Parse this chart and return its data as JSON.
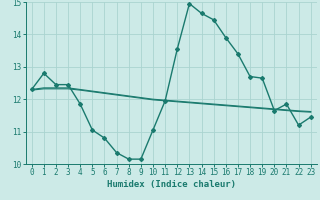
{
  "xlabel": "Humidex (Indice chaleur)",
  "background_color": "#cceae7",
  "grid_color": "#aad4d0",
  "line_color": "#1a7a6e",
  "xlim": [
    -0.5,
    23.5
  ],
  "ylim": [
    10,
    15
  ],
  "yticks": [
    10,
    11,
    12,
    13,
    14,
    15
  ],
  "xticks": [
    0,
    1,
    2,
    3,
    4,
    5,
    6,
    7,
    8,
    9,
    10,
    11,
    12,
    13,
    14,
    15,
    16,
    17,
    18,
    19,
    20,
    21,
    22,
    23
  ],
  "series1_x": [
    0,
    1,
    2,
    3,
    4,
    5,
    6,
    7,
    8,
    9,
    10,
    11,
    12,
    13,
    14,
    15,
    16,
    17,
    18,
    19,
    20,
    21,
    22,
    23
  ],
  "series1_y": [
    12.3,
    12.8,
    12.45,
    12.45,
    11.85,
    11.05,
    10.8,
    10.35,
    10.15,
    10.15,
    11.05,
    11.95,
    13.55,
    14.95,
    14.65,
    14.45,
    13.9,
    13.4,
    12.7,
    12.65,
    11.65,
    11.85,
    11.2,
    11.45
  ],
  "series2_x": [
    0,
    1,
    2,
    3,
    4,
    5,
    6,
    7,
    8,
    9,
    10,
    11,
    12,
    13,
    14,
    15,
    16,
    17,
    18,
    19,
    20,
    21,
    22,
    23
  ],
  "series2_y": [
    12.3,
    12.35,
    12.35,
    12.35,
    12.3,
    12.25,
    12.2,
    12.15,
    12.1,
    12.05,
    12.0,
    11.97,
    11.94,
    11.91,
    11.88,
    11.85,
    11.82,
    11.79,
    11.76,
    11.73,
    11.7,
    11.67,
    11.64,
    11.62
  ],
  "series3_x": [
    0,
    1,
    2,
    3,
    4,
    5,
    6,
    7,
    8,
    9,
    10,
    11,
    12,
    13,
    14,
    15,
    16,
    17,
    18,
    19,
    20,
    21,
    22,
    23
  ],
  "series3_y": [
    12.28,
    12.32,
    12.32,
    12.32,
    12.28,
    12.23,
    12.18,
    12.13,
    12.08,
    12.03,
    11.98,
    11.95,
    11.92,
    11.89,
    11.86,
    11.83,
    11.8,
    11.77,
    11.74,
    11.71,
    11.68,
    11.65,
    11.62,
    11.6
  ]
}
